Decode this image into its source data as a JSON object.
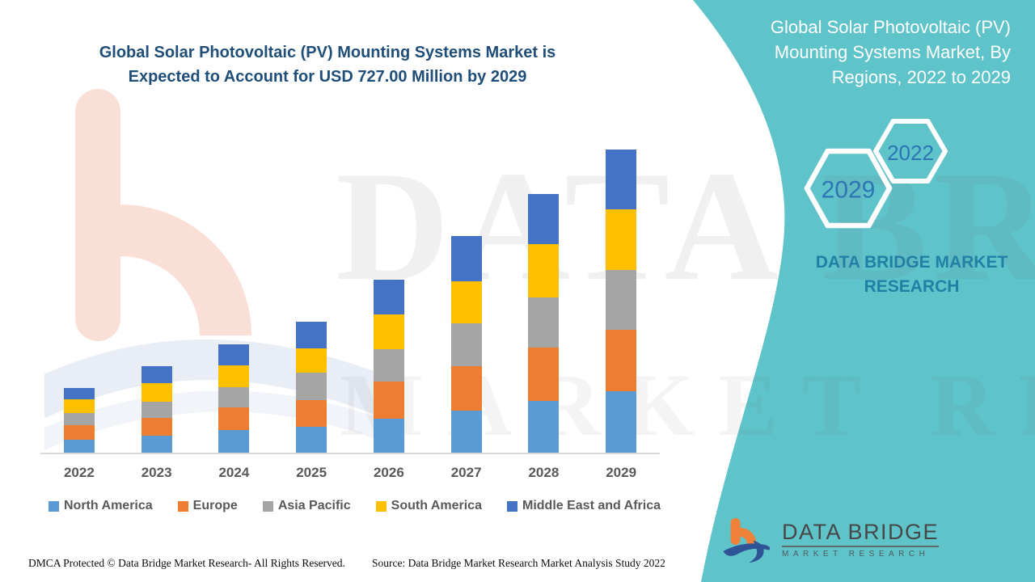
{
  "header": {
    "title_line1": "Global Solar Photovoltaic (PV) Mounting Systems Market is",
    "title_line2": "Expected to Account for USD 727.00 Million by 2029"
  },
  "side_panel": {
    "title": "Global Solar Photovoltaic (PV) Mounting Systems Market, By Regions, 2022 to 2029",
    "hexagons": [
      {
        "label": "2022"
      },
      {
        "label": "2029"
      }
    ],
    "brand_text_line1": "DATA BRIDGE MARKET",
    "brand_text_line2": "RESEARCH",
    "background_color": "#5FC3CA",
    "year_text_color": "#2E75B6"
  },
  "watermark": {
    "line1": "DATA BRIDGE",
    "line2": "MARKET RESEARCH"
  },
  "logo": {
    "name": "DATA BRIDGE",
    "subtitle": "MARKET RESEARCH",
    "mark_colors": {
      "orange": "#F08138",
      "blue": "#2F5496"
    }
  },
  "footer": {
    "left": "DMCA Protected © Data Bridge Market Research- All Rights Reserved.",
    "right": "Source: Data Bridge Market Research Market Analysis Study 2022"
  },
  "chart_data": {
    "type": "bar",
    "stacked": true,
    "title": "Global Solar Photovoltaic (PV) Mounting Systems Market is Expected to Account for USD 727.00 Million by 2029",
    "unit": "USD Million",
    "categories": [
      "2022",
      "2023",
      "2024",
      "2025",
      "2026",
      "2027",
      "2028",
      "2029"
    ],
    "series": [
      {
        "name": "North America",
        "color": "#5B9BD5",
        "values": [
          32,
          41,
          54,
          63,
          81,
          101,
          125,
          147
        ]
      },
      {
        "name": "Europe",
        "color": "#ED7D31",
        "values": [
          34,
          43,
          54,
          63,
          89,
          107,
          127,
          148
        ]
      },
      {
        "name": "Asia Pacific",
        "color": "#A5A5A5",
        "values": [
          29,
          39,
          48,
          66,
          78,
          103,
          121,
          143
        ]
      },
      {
        "name": "South America",
        "color": "#FFC000",
        "values": [
          33,
          44,
          53,
          58,
          84,
          101,
          127,
          145
        ]
      },
      {
        "name": "Middle East and Africa",
        "color": "#4472C4",
        "values": [
          28,
          41,
          50,
          65,
          83,
          107,
          121,
          144
        ]
      }
    ],
    "totals": [
      156,
      208,
      259,
      315,
      415,
      519,
      621,
      727
    ],
    "ylim": [
      0,
      760
    ],
    "grid": false,
    "y_axis_visible": false,
    "x_axis_visible": true,
    "legend_position": "bottom"
  }
}
